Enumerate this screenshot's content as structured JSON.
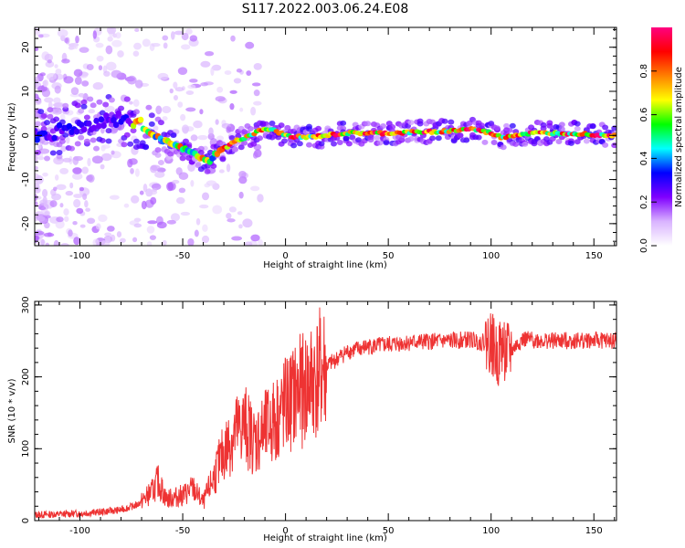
{
  "chart_data": [
    {
      "type": "heatmap",
      "title": "S117.2022.003.06.24.E08",
      "xlabel": "Height of straight line (km)",
      "ylabel": "Frequency (Hz)",
      "xlim": [
        -122,
        161
      ],
      "ylim": [
        -25,
        24.5
      ],
      "xticks": [
        -100,
        -50,
        0,
        50,
        100,
        150
      ],
      "yticks": [
        -20,
        -10,
        0,
        10,
        20
      ],
      "grid": false,
      "ridge": {
        "x": [
          -120,
          -110,
          -100,
          -90,
          -80,
          -75,
          -70,
          -65,
          -60,
          -55,
          -50,
          -45,
          -40,
          -37,
          -35,
          -30,
          -25,
          -20,
          -15,
          -10,
          -5,
          0,
          10,
          20,
          30,
          50,
          80,
          90,
          100,
          105,
          110,
          120,
          140,
          160
        ],
        "y": [
          0,
          1,
          2,
          3,
          4,
          3,
          2,
          0.5,
          -1,
          -2,
          -3,
          -4,
          -5.5,
          -6,
          -4.5,
          -3,
          -1.5,
          -0.5,
          0.5,
          1.5,
          1,
          0,
          -0.5,
          0,
          0.5,
          0.5,
          1,
          1.5,
          0.5,
          -0.5,
          0,
          0.5,
          0.5,
          0
        ]
      },
      "colorbar": {
        "label": "Normalized spectral amplitude",
        "ticks": [
          "0.0",
          "0.2",
          "0.4",
          "0.6",
          "0.8"
        ],
        "tick_values": [
          0,
          0.2,
          0.4,
          0.6,
          0.8
        ],
        "range": [
          0,
          1
        ],
        "colors": [
          "#ffffff",
          "#d9b3ff",
          "#8000ff",
          "#0000ff",
          "#00ffff",
          "#00ff00",
          "#ffff00",
          "#ff8000",
          "#ff0000",
          "#ff0080"
        ]
      }
    },
    {
      "type": "line",
      "xlabel": "Height of straight line (km)",
      "ylabel": "SNR (10 * v/v)",
      "xlim": [
        -122,
        161
      ],
      "ylim": [
        0,
        305
      ],
      "xticks": [
        -100,
        -50,
        0,
        50,
        100,
        150
      ],
      "yticks": [
        0,
        100,
        200,
        300
      ],
      "color": "#ee3333",
      "series": [
        {
          "x": [
            -122,
            -110,
            -100,
            -90,
            -80,
            -72,
            -65,
            -62,
            -58,
            -50,
            -45,
            -40,
            -35,
            -30,
            -25,
            -20,
            -15,
            -10,
            -5,
            0,
            5,
            10,
            15,
            20,
            30,
            40,
            50,
            60,
            70,
            80,
            90,
            95,
            100,
            103,
            105,
            108,
            115,
            130,
            150,
            161
          ],
          "y": [
            8,
            9,
            10,
            12,
            15,
            22,
            40,
            55,
            30,
            35,
            45,
            25,
            60,
            95,
            120,
            135,
            110,
            125,
            140,
            160,
            175,
            185,
            200,
            215,
            235,
            242,
            245,
            248,
            249,
            250,
            252,
            248,
            250,
            225,
            245,
            230,
            252,
            250,
            251,
            250
          ]
        }
      ]
    }
  ]
}
